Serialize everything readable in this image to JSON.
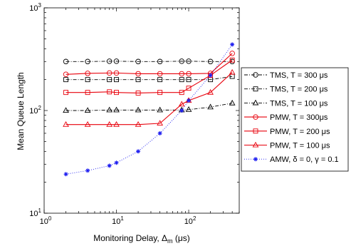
{
  "chart_data": {
    "type": "line",
    "title": "",
    "xlabel_main": "Monitoring Delay, Δ",
    "xlabel_sub": "m",
    "xlabel_unit": " (μs)",
    "ylabel": "Mean Queue Length",
    "xscale": "log",
    "yscale": "log",
    "xlim": [
      1,
      500
    ],
    "ylim": [
      10,
      1000
    ],
    "x_ticks": [
      {
        "base": "10",
        "exp": "0",
        "value": 1
      },
      {
        "base": "10",
        "exp": "1",
        "value": 10
      },
      {
        "base": "10",
        "exp": "2",
        "value": 100
      }
    ],
    "y_ticks": [
      {
        "base": "10",
        "exp": "1",
        "value": 10
      },
      {
        "base": "10",
        "exp": "2",
        "value": 100
      },
      {
        "base": "10",
        "exp": "3",
        "value": 1000
      }
    ],
    "grid": false,
    "legend_position": "right",
    "series": [
      {
        "name": "TMS, T = 300 μs",
        "color": "#000000",
        "dash": "dashdot",
        "marker": "circle",
        "x": [
          2,
          4,
          8,
          10,
          20,
          40,
          80,
          100,
          200,
          400
        ],
        "y": [
          300,
          300,
          302,
          302,
          300,
          300,
          302,
          302,
          300,
          300
        ]
      },
      {
        "name": "TMS, T = 200 μs",
        "color": "#000000",
        "dash": "dashdot",
        "marker": "square",
        "x": [
          2,
          4,
          8,
          10,
          20,
          40,
          80,
          100,
          200,
          400
        ],
        "y": [
          200,
          200,
          200,
          200,
          200,
          200,
          200,
          200,
          200,
          215
        ]
      },
      {
        "name": "TMS, T = 100 μs",
        "color": "#000000",
        "dash": "dashdot",
        "marker": "triangle",
        "x": [
          2,
          4,
          8,
          10,
          20,
          40,
          80,
          100,
          200,
          400
        ],
        "y": [
          100,
          100,
          101,
          101,
          101,
          101,
          101,
          102,
          108,
          118
        ]
      },
      {
        "name": "PMW, T = 300μs",
        "color": "#e8000b",
        "dash": "solid",
        "marker": "circle",
        "x": [
          2,
          4,
          8,
          10,
          20,
          40,
          80,
          100,
          200,
          400
        ],
        "y": [
          225,
          230,
          232,
          232,
          228,
          228,
          228,
          228,
          230,
          360
        ]
      },
      {
        "name": "PMW, T = 200 μs",
        "color": "#e8000b",
        "dash": "solid",
        "marker": "square",
        "x": [
          2,
          4,
          8,
          10,
          20,
          40,
          80,
          100,
          200,
          400
        ],
        "y": [
          150,
          150,
          152,
          150,
          148,
          150,
          150,
          165,
          220,
          310
        ]
      },
      {
        "name": "PMW, T = 100 μs",
        "color": "#e8000b",
        "dash": "solid",
        "marker": "triangle",
        "x": [
          2,
          4,
          8,
          10,
          20,
          40,
          80,
          100,
          200,
          400
        ],
        "y": [
          73,
          73,
          73,
          73,
          73,
          75,
          115,
          125,
          150,
          235
        ]
      },
      {
        "name": "AMW, δ = 0, γ = 0.1",
        "color": "#1f1ff0",
        "dash": "dotted",
        "marker": "star",
        "x": [
          2,
          4,
          8,
          10,
          20,
          40,
          80,
          100,
          200,
          400
        ],
        "y": [
          24,
          26,
          29,
          31,
          40,
          60,
          100,
          125,
          220,
          440
        ]
      }
    ]
  }
}
